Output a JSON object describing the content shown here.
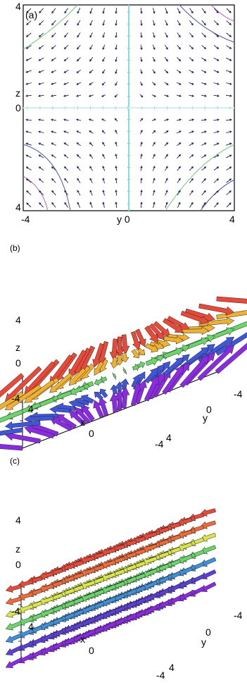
{
  "panel_a": {
    "label": "(a)",
    "y_tick_top": "4",
    "y_tick_mid": "0",
    "y_tick_bottom": "4",
    "z_label": "z",
    "x_tick_left": "-4",
    "x_tick_right": "4",
    "x_mid_label": "y 0",
    "colors": {
      "arrow": "#1a1a5e",
      "axis_line": "#7fe0e6",
      "contour_green": "#77c77a",
      "contour_blue": "#4a5aa8",
      "contour_magenta": "#c060c0"
    }
  },
  "panel_b": {
    "label": "(b)",
    "z_tick_top": "4",
    "z_label": "z",
    "z_tick_mid": "0",
    "z_tick_bottom": "-4",
    "x_tick_far": "4",
    "x_label": "x",
    "x_tick_mid": "0",
    "x_tick_near": "-4",
    "y_tick_far": "-4",
    "y_label": "y",
    "y_tick_mid": "0",
    "y_tick_near": "4"
  },
  "panel_c": {
    "label": "(c)",
    "z_tick_top": "4",
    "z_label": "z",
    "z_tick_mid": "0",
    "z_tick_bottom": "-4",
    "x_tick_far": "4",
    "x_label": "x",
    "x_tick_mid": "0",
    "x_tick_near": "-4",
    "y_tick_far": "-4",
    "y_label": "y",
    "y_tick_mid": "0",
    "y_tick_near": "4"
  },
  "palette": [
    "#8a2be2",
    "#5b3fd6",
    "#3f56d9",
    "#3f8fd9",
    "#3fc4c4",
    "#6ad66a",
    "#d9e64a",
    "#f0b030",
    "#ef6a3a",
    "#e84a3a"
  ]
}
